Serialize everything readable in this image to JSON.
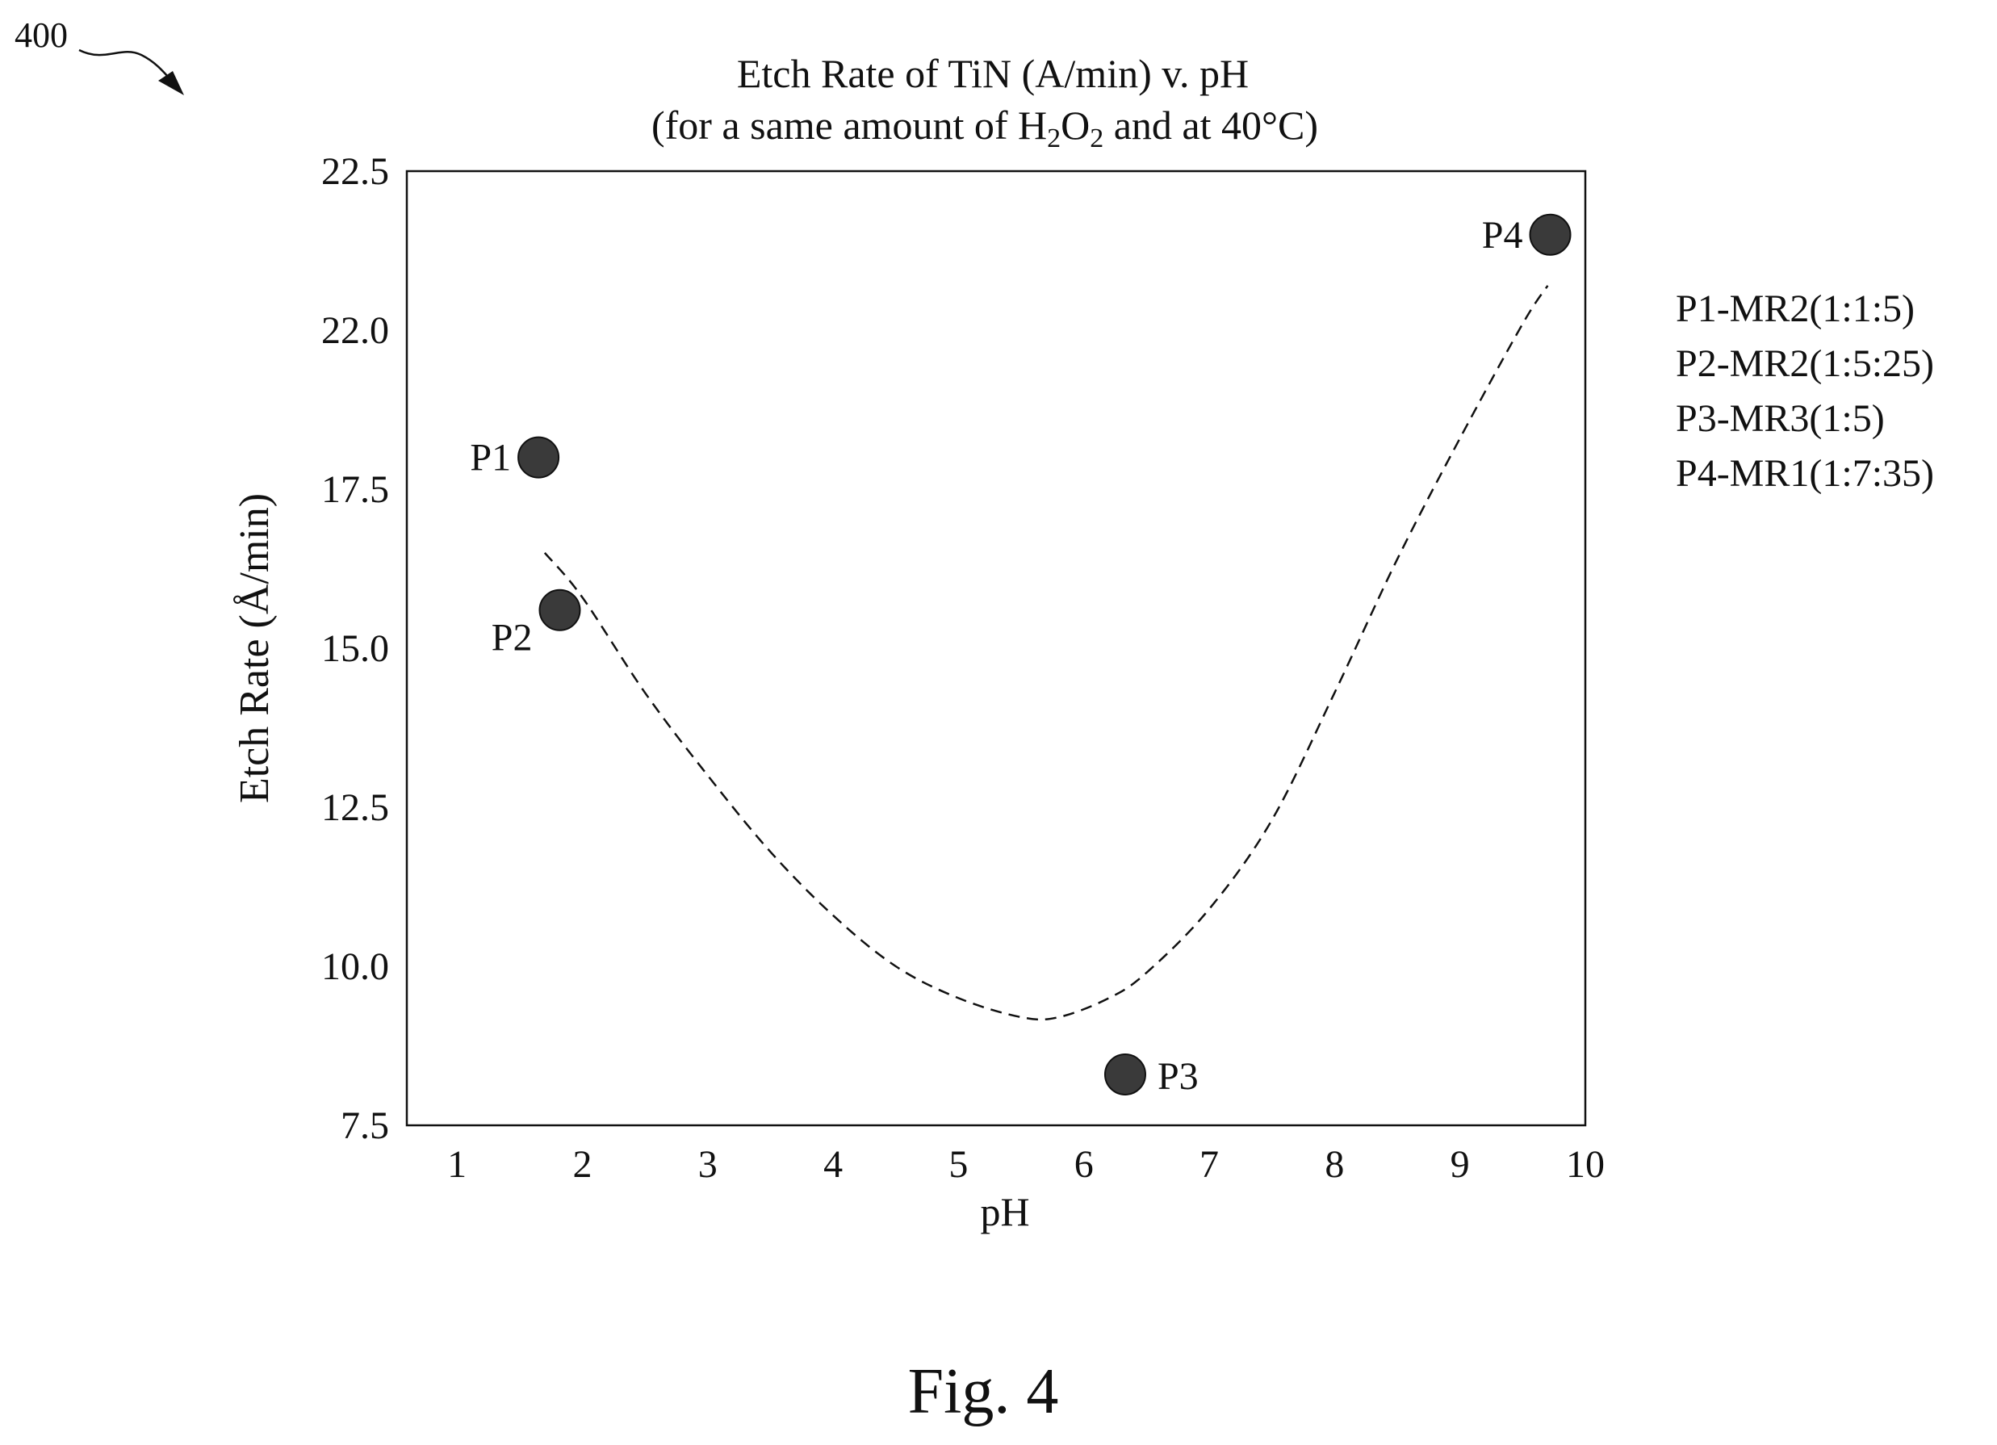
{
  "figure": {
    "reference_numeral": "400",
    "caption": "Fig. 4"
  },
  "chart_data": {
    "type": "scatter",
    "title": "Etch Rate of TiN (A/min) v. pH",
    "subtitle_parts": {
      "prefix": "(for a same amount of H",
      "sub1": "2",
      "mid": "O",
      "sub2": "2",
      "suffix": " and at 40°C)"
    },
    "xlabel": "pH",
    "ylabel": "Etch Rate (Å/min)",
    "xlim": [
      0.6,
      10
    ],
    "ylim": [
      7.5,
      22.5
    ],
    "x_ticks": [
      "1",
      "2",
      "3",
      "4",
      "5",
      "6",
      "7",
      "8",
      "9",
      "10"
    ],
    "x_tick_values": [
      1,
      2,
      3,
      4,
      5,
      6,
      7,
      8,
      9,
      10
    ],
    "y_ticks": [
      "7.5",
      "10.0",
      "12.5",
      "15.0",
      "17.5",
      "22.0",
      "22.5"
    ],
    "y_tick_values": [
      7.5,
      10.0,
      12.5,
      15.0,
      17.5,
      20.0,
      22.5
    ],
    "points": [
      {
        "label": "P1",
        "x": 1.65,
        "y": 18.0,
        "label_side": "left"
      },
      {
        "label": "P2",
        "x": 1.82,
        "y": 15.6,
        "label_side": "bottom-left"
      },
      {
        "label": "P3",
        "x": 6.33,
        "y": 8.3,
        "label_side": "right"
      },
      {
        "label": "P4",
        "x": 9.72,
        "y": 21.5,
        "label_side": "left"
      }
    ],
    "trend_line": {
      "style": "dashed",
      "x": [
        1.7,
        2.0,
        2.5,
        3.0,
        3.5,
        4.0,
        4.5,
        5.0,
        5.5,
        5.8,
        6.2,
        6.5,
        7.0,
        7.5,
        8.0,
        8.5,
        9.0,
        9.5,
        9.7
      ],
      "y": [
        16.5,
        15.8,
        14.3,
        13.0,
        11.8,
        10.8,
        10.0,
        9.5,
        9.2,
        9.2,
        9.5,
        9.9,
        10.9,
        12.3,
        14.3,
        16.4,
        18.3,
        20.1,
        20.7
      ]
    },
    "legend": {
      "placement": "right",
      "entries": [
        "P1-MR2(1:1:5)",
        "P2-MR2(1:5:25)",
        "P3-MR3(1:5)",
        "P4-MR1(1:7:35)"
      ]
    },
    "grid": false,
    "marker_color": "#3a3a3a",
    "line_color": "#111111"
  }
}
